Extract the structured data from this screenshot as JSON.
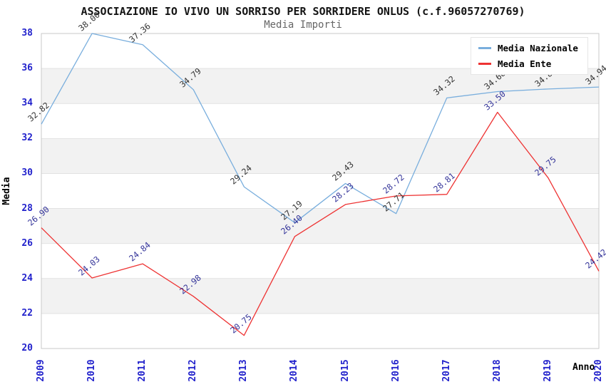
{
  "title": "ASSOCIAZIONE IO VIVO UN SORRISO PER SORRIDERE ONLUS (c.f.96057270769)",
  "subtitle": "Media Importi",
  "chart_data": {
    "type": "line",
    "x": [
      "2009",
      "2010",
      "2011",
      "2012",
      "2013",
      "2014",
      "2015",
      "2016",
      "2017",
      "2018",
      "2019",
      "2020"
    ],
    "series": [
      {
        "name": "Media Nazionale",
        "color": "#79aedd",
        "label_color": "#333333",
        "values": [
          32.82,
          38.0,
          37.36,
          34.79,
          29.24,
          27.19,
          29.43,
          27.71,
          34.32,
          34.68,
          34.83,
          34.94
        ]
      },
      {
        "name": "Media Ente",
        "color": "#ee3333",
        "label_color": "#333399",
        "values": [
          26.9,
          24.03,
          24.84,
          22.98,
          20.75,
          26.4,
          28.23,
          28.72,
          28.81,
          33.5,
          29.75,
          24.42
        ]
      }
    ],
    "xlabel": "Anno",
    "ylabel": "Media",
    "ylim": [
      20,
      38
    ],
    "yticks": [
      20,
      22,
      24,
      26,
      28,
      30,
      32,
      34,
      36,
      38
    ],
    "ytick_step": 2,
    "value_decimals": 2,
    "legend_position": "top-right",
    "grid": "horizontal-bands",
    "band_colors": [
      "#ffffff",
      "#f2f2f2"
    ],
    "grid_color": "#e2e2e2",
    "plot_border_color": "#c9c9c9",
    "axis_tick_color": "#2222cc"
  }
}
